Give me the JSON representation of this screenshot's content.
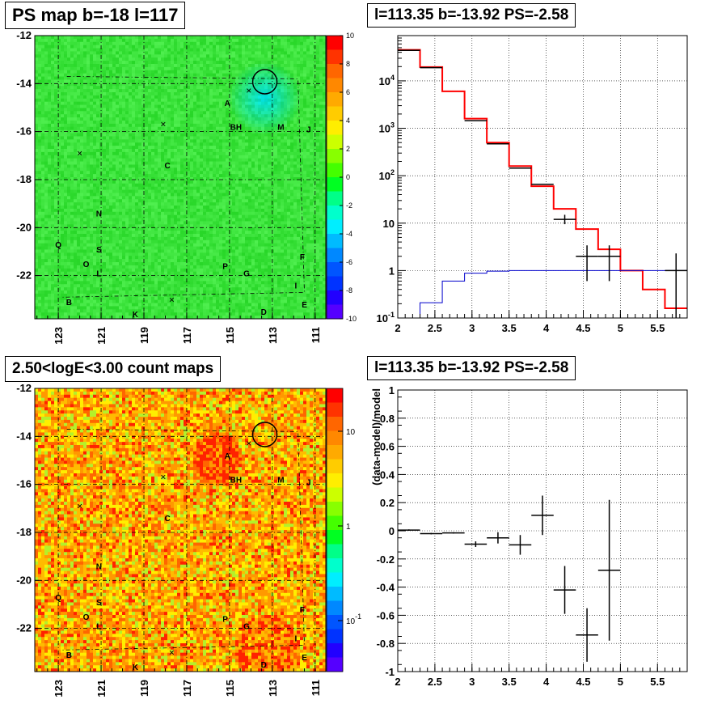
{
  "panels": {
    "tl": {
      "title": "PS map b=-18 l=117"
    },
    "tr": {
      "title": "l=113.35 b=-13.92 PS=-2.58"
    },
    "bl": {
      "title": "2.50<logE<3.00 count maps"
    },
    "br": {
      "title": "l=113.35 b=-13.92 PS=-2.58"
    }
  },
  "chart_data": [
    {
      "type": "heatmap",
      "title": "PS map b=-18 l=117",
      "xlabel": "",
      "ylabel": "",
      "x_ticks": [
        "123",
        "121",
        "119",
        "117",
        "115",
        "113",
        "111"
      ],
      "y_ticks": [
        "-12",
        "-14",
        "-16",
        "-18",
        "-20",
        "-22"
      ],
      "xlim": [
        124.1,
        110.5
      ],
      "ylim": [
        -23.8,
        -12
      ],
      "colorbar": {
        "min": -10,
        "max": 10,
        "ticks": [
          "10",
          "8",
          "6",
          "4",
          "2",
          "0",
          "-2",
          "-4",
          "-6",
          "-8",
          "-10"
        ]
      },
      "source_labels": [
        "A",
        "BH",
        "M",
        "J",
        "C",
        "N",
        "Q",
        "S",
        "O",
        "L",
        "P",
        "G",
        "F",
        "I",
        "B",
        "K",
        "D",
        "E"
      ],
      "circle_center": [
        113.35,
        -13.92
      ]
    },
    {
      "type": "line",
      "title": "l=113.35 b=-13.92 PS=-2.58",
      "xlabel": "",
      "ylabel": "",
      "x_ticks": [
        "2",
        "2.5",
        "3",
        "3.5",
        "4",
        "4.5",
        "5",
        "5.5"
      ],
      "y_ticks": [
        "10^-1",
        "1",
        "10",
        "10^2",
        "10^3",
        "10^4"
      ],
      "xlim": [
        2,
        5.9
      ],
      "ylim": [
        0.1,
        90000
      ],
      "log_y": true,
      "grid": true,
      "series": [
        {
          "color": "#ff0000",
          "edges": [
            2,
            2.3,
            2.6,
            2.9,
            3.2,
            3.5,
            3.8,
            4.1,
            4.4,
            4.7,
            5.0,
            5.3,
            5.6,
            5.9
          ],
          "values": [
            45000,
            19500,
            6000,
            1600,
            500,
            160,
            60,
            20,
            7.5,
            2.8,
            1.0,
            0.4,
            0.16
          ]
        },
        {
          "color": "#0000cc",
          "edges": [
            2,
            2.3,
            2.6,
            2.9,
            3.2,
            3.5,
            3.8,
            4.1,
            4.4,
            4.7,
            5.0,
            5.3,
            5.6,
            5.9
          ],
          "values": [
            0.1,
            0.21,
            0.6,
            0.88,
            0.97,
            1.0,
            1.0,
            1.0,
            1.0,
            1.0,
            1.0,
            1.0,
            1.0
          ]
        },
        {
          "color": "#000000",
          "points": [
            {
              "x": 2.15,
              "y": 44000,
              "xe": 0.15
            },
            {
              "x": 2.45,
              "y": 19000,
              "xe": 0.15
            },
            {
              "x": 3.05,
              "y": 1450,
              "xe": 0.15
            },
            {
              "x": 3.35,
              "y": 470,
              "xe": 0.15
            },
            {
              "x": 3.65,
              "y": 145,
              "xe": 0.15
            },
            {
              "x": 3.95,
              "y": 66,
              "xe": 0.15
            },
            {
              "x": 4.25,
              "y": 12,
              "xe": 0.15,
              "yl": 9.5,
              "yh": 15
            },
            {
              "x": 4.55,
              "y": 2.0,
              "xe": 0.15,
              "yl": 0.6,
              "yh": 3.4
            },
            {
              "x": 4.85,
              "y": 2.0,
              "xe": 0.15,
              "yl": 0.6,
              "yh": 3.4
            },
            {
              "x": 5.75,
              "y": 1.0,
              "xe": 0.15,
              "yl": 0.1,
              "yh": 2.3
            }
          ]
        }
      ]
    },
    {
      "type": "heatmap",
      "title": "2.50<logE<3.00 count maps",
      "xlabel": "",
      "ylabel": "",
      "x_ticks": [
        "123",
        "121",
        "119",
        "117",
        "115",
        "113",
        "111"
      ],
      "y_ticks": [
        "-12",
        "-14",
        "-16",
        "-18",
        "-20",
        "-22"
      ],
      "xlim": [
        124.1,
        110.5
      ],
      "ylim": [
        -23.8,
        -12
      ],
      "colorbar": {
        "log": true,
        "ticks": [
          "10",
          "1",
          "10^-1"
        ]
      },
      "source_labels": [
        "A",
        "BH",
        "M",
        "J",
        "C",
        "N",
        "Q",
        "S",
        "O",
        "L",
        "P",
        "G",
        "F",
        "I",
        "B",
        "K",
        "D",
        "E"
      ],
      "circle_center": [
        113.35,
        -13.92
      ]
    },
    {
      "type": "scatter",
      "title": "l=113.35 b=-13.92 PS=-2.58",
      "xlabel": "",
      "ylabel": "(data-model)/model",
      "x_ticks": [
        "2",
        "2.5",
        "3",
        "3.5",
        "4",
        "4.5",
        "5",
        "5.5"
      ],
      "y_ticks": [
        "1",
        "0.8",
        "0.6",
        "0.4",
        "0.2",
        "0",
        "-0.2",
        "-0.4",
        "-0.6",
        "-0.8",
        "-1"
      ],
      "xlim": [
        2,
        5.9
      ],
      "ylim": [
        -1,
        1
      ],
      "grid": true,
      "points": [
        {
          "x": 2.15,
          "y": 0.005,
          "xe": 0.15,
          "ye": 0.005
        },
        {
          "x": 2.45,
          "y": -0.02,
          "xe": 0.15,
          "ye": 0.005
        },
        {
          "x": 2.75,
          "y": -0.015,
          "xe": 0.15,
          "ye": 0.005
        },
        {
          "x": 3.05,
          "y": -0.095,
          "xe": 0.15,
          "ye": 0.02
        },
        {
          "x": 3.35,
          "y": -0.05,
          "xe": 0.15,
          "ye": 0.04
        },
        {
          "x": 3.65,
          "y": -0.1,
          "xe": 0.15,
          "ye": 0.07
        },
        {
          "x": 3.95,
          "y": 0.11,
          "xe": 0.15,
          "ye": 0.14
        },
        {
          "x": 4.25,
          "y": -0.42,
          "xe": 0.15,
          "ye": 0.17
        },
        {
          "x": 4.55,
          "y": -0.74,
          "xe": 0.15,
          "ye": 0.19
        },
        {
          "x": 4.85,
          "y": -0.28,
          "xe": 0.15,
          "ye": 0.5
        }
      ]
    }
  ]
}
